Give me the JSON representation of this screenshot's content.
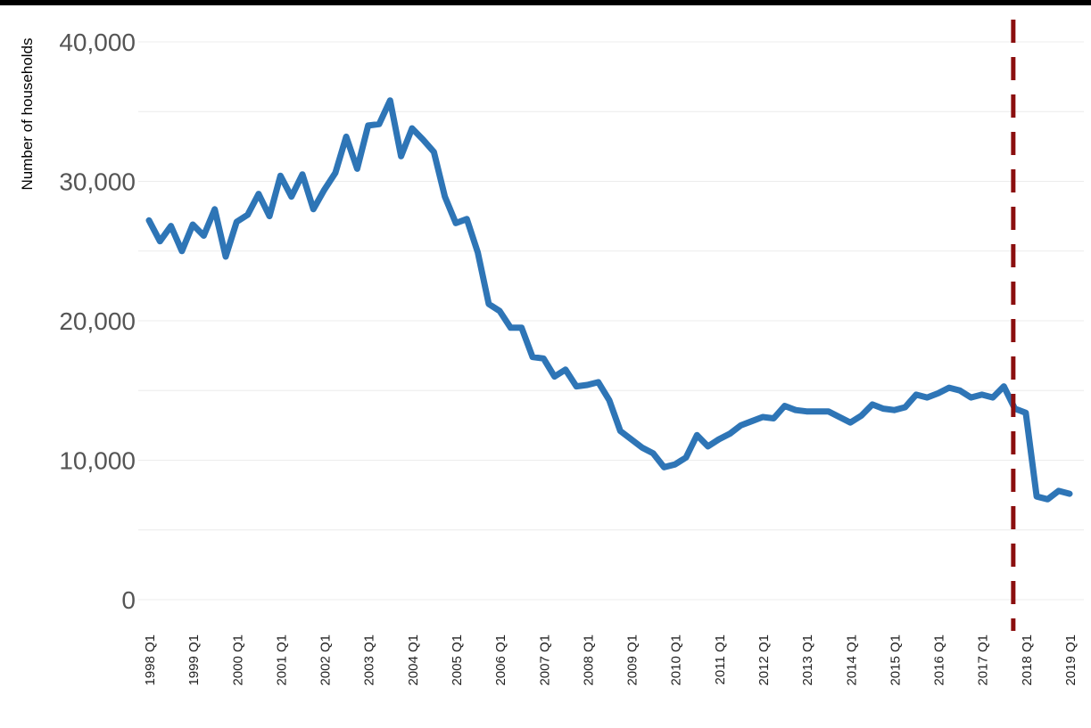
{
  "chart_data": {
    "type": "line",
    "title": "",
    "xlabel": "",
    "ylabel": "Number of households",
    "ylim": [
      0,
      40000
    ],
    "y_ticks": [
      0,
      10000,
      20000,
      30000,
      40000
    ],
    "y_tick_labels": [
      "0",
      "10,000",
      "20,000",
      "30,000",
      "40,000"
    ],
    "x_tick_labels": [
      "1998 Q1",
      "1999 Q1",
      "2000 Q1",
      "2001 Q1",
      "2002 Q1",
      "2003 Q1",
      "2004 Q1",
      "2005 Q1",
      "2006 Q1",
      "2007 Q1",
      "2008 Q1",
      "2009 Q1",
      "2010 Q1",
      "2011 Q1",
      "2012 Q1",
      "2013 Q1",
      "2014 Q1",
      "2015 Q1",
      "2016 Q1",
      "2017 Q1",
      "2018 Q1",
      "2019 Q1"
    ],
    "grid": true,
    "reference_line": {
      "at": "2018 Q1",
      "style": "dashed",
      "color": "#8b0f0f"
    },
    "series": [
      {
        "color": "#2e75b6",
        "x": [
          "1998 Q1",
          "1998 Q2",
          "1998 Q3",
          "1998 Q4",
          "1999 Q1",
          "1999 Q2",
          "1999 Q3",
          "1999 Q4",
          "2000 Q1",
          "2000 Q2",
          "2000 Q3",
          "2000 Q4",
          "2001 Q1",
          "2001 Q2",
          "2001 Q3",
          "2001 Q4",
          "2002 Q1",
          "2002 Q2",
          "2002 Q3",
          "2002 Q4",
          "2003 Q1",
          "2003 Q2",
          "2003 Q3",
          "2003 Q4",
          "2004 Q1",
          "2004 Q2",
          "2004 Q3",
          "2004 Q4",
          "2005 Q1",
          "2005 Q2",
          "2005 Q3",
          "2005 Q4",
          "2006 Q1",
          "2006 Q2",
          "2006 Q3",
          "2006 Q4",
          "2007 Q1",
          "2007 Q2",
          "2007 Q3",
          "2007 Q4",
          "2008 Q1",
          "2008 Q2",
          "2008 Q3",
          "2008 Q4",
          "2009 Q1",
          "2009 Q2",
          "2009 Q3",
          "2009 Q4",
          "2010 Q1",
          "2010 Q2",
          "2010 Q3",
          "2010 Q4",
          "2011 Q1",
          "2011 Q2",
          "2011 Q3",
          "2011 Q4",
          "2012 Q1",
          "2012 Q2",
          "2012 Q3",
          "2012 Q4",
          "2013 Q1",
          "2013 Q2",
          "2013 Q3",
          "2013 Q4",
          "2014 Q1",
          "2014 Q2",
          "2014 Q3",
          "2014 Q4",
          "2015 Q1",
          "2015 Q2",
          "2015 Q3",
          "2015 Q4",
          "2016 Q1",
          "2016 Q2",
          "2016 Q3",
          "2016 Q4",
          "2017 Q1",
          "2017 Q2",
          "2017 Q3",
          "2017 Q4",
          "2018 Q1",
          "2018 Q2",
          "2018 Q3",
          "2018 Q4",
          "2019 Q1"
        ],
        "values": [
          27200,
          25700,
          26800,
          25000,
          26900,
          26100,
          28000,
          24600,
          27100,
          27600,
          29100,
          27500,
          30400,
          28900,
          30500,
          28000,
          29400,
          30600,
          33200,
          30900,
          34000,
          34100,
          35800,
          31800,
          33800,
          33000,
          32100,
          28900,
          27000,
          27300,
          24900,
          21200,
          20700,
          19500,
          19500,
          17400,
          17300,
          16000,
          16500,
          15300,
          15400,
          15600,
          14300,
          12100,
          11500,
          10900,
          10500,
          9500,
          9700,
          10200,
          11800,
          11000,
          11500,
          11900,
          12500,
          12800,
          13100,
          13000,
          13900,
          13600,
          13500,
          13500,
          13500,
          13100,
          12700,
          13200,
          14000,
          13700,
          13600,
          13800,
          14700,
          14500,
          14800,
          15200,
          15000,
          14500,
          14700,
          14500,
          15300,
          13700,
          13400,
          7400,
          7200,
          7800,
          7600
        ]
      }
    ]
  }
}
